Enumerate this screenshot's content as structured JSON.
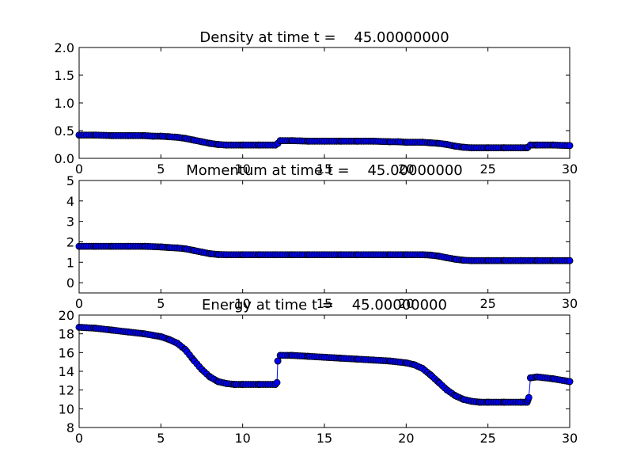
{
  "colors": {
    "marker_fill": "#0000ff",
    "marker_edge": "#000000",
    "line": "#0000ff",
    "axes": "#000000",
    "background": "#ffffff"
  },
  "chart_data": [
    {
      "type": "line",
      "title": "Density at time t =    45.00000000",
      "xlabel": "",
      "ylabel": "",
      "xlim": [
        0,
        30
      ],
      "ylim": [
        0.0,
        2.0
      ],
      "xticks": [
        0,
        5,
        10,
        15,
        20,
        25,
        30
      ],
      "xtick_labels": [
        "0",
        "5",
        "10",
        "15",
        "20",
        "25",
        "30"
      ],
      "yticks": [
        0.0,
        0.5,
        1.0,
        1.5,
        2.0
      ],
      "ytick_labels": [
        "0.0",
        "0.5",
        "1.0",
        "1.5",
        "2.0"
      ],
      "grid": false,
      "marker": "circle",
      "series": [
        {
          "x": [
            0,
            1,
            2,
            3,
            4,
            4.5,
            5,
            5.5,
            6,
            6.5,
            7,
            7.5,
            8,
            8.5,
            9,
            10,
            11,
            12,
            12.15,
            12.3,
            13,
            14,
            15,
            16,
            17,
            18,
            19,
            19.5,
            20,
            21,
            21.5,
            22,
            22.5,
            23,
            23.5,
            24,
            25,
            26,
            27,
            27.4,
            27.6,
            28,
            29,
            30
          ],
          "y": [
            0.42,
            0.42,
            0.41,
            0.41,
            0.41,
            0.4,
            0.4,
            0.39,
            0.38,
            0.36,
            0.33,
            0.3,
            0.27,
            0.25,
            0.24,
            0.24,
            0.24,
            0.24,
            0.27,
            0.32,
            0.32,
            0.31,
            0.31,
            0.31,
            0.31,
            0.31,
            0.3,
            0.3,
            0.29,
            0.29,
            0.28,
            0.27,
            0.25,
            0.22,
            0.2,
            0.19,
            0.19,
            0.19,
            0.19,
            0.19,
            0.24,
            0.24,
            0.24,
            0.23
          ]
        }
      ]
    },
    {
      "type": "line",
      "title": "Momentum at time t =    45.00000000",
      "xlabel": "",
      "ylabel": "",
      "xlim": [
        0,
        30
      ],
      "ylim": [
        -0.5,
        5
      ],
      "xticks": [
        0,
        5,
        10,
        15,
        20,
        25,
        30
      ],
      "xtick_labels": [
        "0",
        "5",
        "10",
        "15",
        "20",
        "25",
        "30"
      ],
      "yticks": [
        0,
        1,
        2,
        3,
        4,
        5
      ],
      "ytick_labels": [
        "0",
        "1",
        "2",
        "3",
        "4",
        "5"
      ],
      "grid": false,
      "marker": "circle",
      "series": [
        {
          "x": [
            0,
            1,
            2,
            3,
            4,
            5,
            5.5,
            6,
            6.5,
            7,
            7.5,
            8,
            8.5,
            9,
            10,
            11,
            12,
            13,
            14,
            15,
            16,
            17,
            18,
            19,
            20,
            21,
            21.5,
            22,
            22.5,
            23,
            23.5,
            24,
            25,
            26,
            27,
            28,
            29,
            30
          ],
          "y": [
            1.78,
            1.78,
            1.78,
            1.78,
            1.78,
            1.75,
            1.72,
            1.7,
            1.66,
            1.58,
            1.5,
            1.42,
            1.38,
            1.37,
            1.37,
            1.37,
            1.37,
            1.37,
            1.37,
            1.37,
            1.37,
            1.37,
            1.37,
            1.37,
            1.37,
            1.37,
            1.35,
            1.3,
            1.22,
            1.15,
            1.1,
            1.08,
            1.08,
            1.08,
            1.08,
            1.08,
            1.08,
            1.08
          ]
        }
      ]
    },
    {
      "type": "line",
      "title": "Energy at time t =    45.00000000",
      "xlabel": "",
      "ylabel": "",
      "xlim": [
        0,
        30
      ],
      "ylim": [
        8,
        20
      ],
      "xticks": [
        0,
        5,
        10,
        15,
        20,
        25,
        30
      ],
      "xtick_labels": [
        "0",
        "5",
        "10",
        "15",
        "20",
        "25",
        "30"
      ],
      "yticks": [
        8,
        10,
        12,
        14,
        16,
        18,
        20
      ],
      "ytick_labels": [
        "8",
        "10",
        "12",
        "14",
        "16",
        "18",
        "20"
      ],
      "grid": false,
      "marker": "circle",
      "series": [
        {
          "x": [
            0,
            1,
            2,
            3,
            4,
            5,
            5.5,
            6,
            6.5,
            7,
            7.5,
            8,
            8.5,
            9,
            9.5,
            10,
            11,
            12,
            12.1,
            12.15,
            12.3,
            13,
            14,
            15,
            16,
            17,
            18,
            19,
            20,
            20.5,
            21,
            21.5,
            22,
            22.5,
            23,
            23.5,
            24,
            24.5,
            25,
            26,
            27,
            27.4,
            27.5,
            27.6,
            28,
            29,
            30
          ],
          "y": [
            18.7,
            18.6,
            18.4,
            18.2,
            18.0,
            17.7,
            17.4,
            17.0,
            16.3,
            15.2,
            14.2,
            13.4,
            12.9,
            12.7,
            12.6,
            12.6,
            12.6,
            12.6,
            12.8,
            15.1,
            15.7,
            15.7,
            15.6,
            15.5,
            15.4,
            15.3,
            15.2,
            15.1,
            14.9,
            14.7,
            14.3,
            13.6,
            12.8,
            12.0,
            11.4,
            11.0,
            10.8,
            10.7,
            10.7,
            10.7,
            10.7,
            10.7,
            11.2,
            13.3,
            13.4,
            13.2,
            12.9
          ]
        }
      ]
    }
  ]
}
